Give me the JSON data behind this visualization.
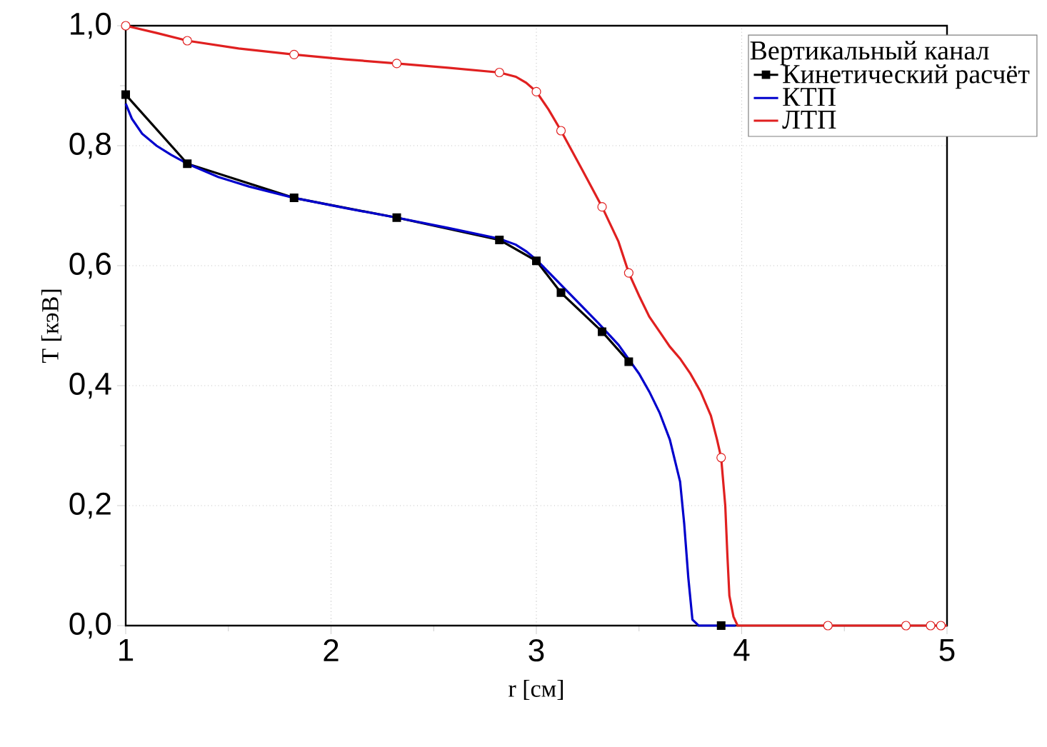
{
  "chart_data": {
    "type": "line",
    "xlabel": "r [см]",
    "ylabel": "T [кэВ]",
    "legend_title": "Вертикальный канал",
    "legend": "top right",
    "grid": true,
    "line_style": "solid",
    "xlim": [
      1,
      5
    ],
    "xticks": [
      1,
      2,
      3,
      4,
      5
    ],
    "ylim": [
      0,
      1.0
    ],
    "yticks": [
      {
        "value": 0,
        "label": "0,0"
      },
      {
        "value": 0.2,
        "label": "0,2"
      },
      {
        "value": 0.4,
        "label": "0,4"
      },
      {
        "value": 0.6,
        "label": "0,6"
      },
      {
        "value": 0.8,
        "label": "0,8"
      },
      {
        "value": 1.0,
        "label": "1,0"
      }
    ],
    "series": [
      {
        "name": "Кинетический расчёт",
        "color": "#000000",
        "marker": "square",
        "x": [
          1.0,
          1.3,
          1.82,
          2.32,
          2.82,
          3.0,
          3.12,
          3.32,
          3.45,
          3.7,
          3.9
        ],
        "values": [
          0.885,
          0.77,
          0.713,
          0.68,
          0.643,
          0.608,
          0.555,
          0.49,
          0.44,
          null,
          0.0
        ]
      },
      {
        "name": "КТП",
        "color": "#0000cc",
        "marker": "none",
        "x": [
          1.0,
          1.03,
          1.08,
          1.15,
          1.22,
          1.3,
          1.45,
          1.6,
          1.82,
          2.07,
          2.32,
          2.57,
          2.82,
          2.9,
          2.95,
          3.0,
          3.1,
          3.2,
          3.3,
          3.4,
          3.5,
          3.55,
          3.6,
          3.65,
          3.7,
          3.72,
          3.74,
          3.76,
          3.79,
          3.97
        ],
        "values": [
          0.87,
          0.845,
          0.82,
          0.8,
          0.785,
          0.77,
          0.748,
          0.732,
          0.713,
          0.696,
          0.68,
          0.663,
          0.645,
          0.635,
          0.624,
          0.61,
          0.575,
          0.54,
          0.505,
          0.468,
          0.42,
          0.39,
          0.355,
          0.31,
          0.24,
          0.17,
          0.08,
          0.01,
          0.0,
          0.0
        ]
      },
      {
        "name": "ЛТП",
        "color": "#e02020",
        "marker": "none",
        "x": [
          1.0,
          1.15,
          1.3,
          1.55,
          1.82,
          2.07,
          2.32,
          2.57,
          2.82,
          2.9,
          2.95,
          3.0,
          3.06,
          3.12,
          3.22,
          3.32,
          3.4,
          3.45,
          3.5,
          3.55,
          3.6,
          3.65,
          3.7,
          3.75,
          3.8,
          3.85,
          3.88,
          3.9,
          3.92,
          3.93,
          3.94,
          3.96,
          3.98,
          4.42,
          5.0
        ],
        "values": [
          1.0,
          0.988,
          0.975,
          0.962,
          0.952,
          0.944,
          0.937,
          0.93,
          0.922,
          0.915,
          0.905,
          0.89,
          0.86,
          0.825,
          0.762,
          0.698,
          0.64,
          0.588,
          0.55,
          0.515,
          0.49,
          0.465,
          0.445,
          0.42,
          0.39,
          0.35,
          0.31,
          0.28,
          0.2,
          0.12,
          0.05,
          0.015,
          0.0,
          0.0,
          0.0
        ]
      },
      {
        "type": "scatter",
        "color": "#e02020",
        "marker": "circle",
        "x": [
          1.0,
          1.3,
          1.82,
          2.32,
          2.82,
          3.0,
          3.12,
          3.32,
          3.45,
          3.9,
          4.42,
          4.8,
          4.92,
          4.97
        ],
        "values": [
          1.0,
          0.975,
          0.952,
          0.937,
          0.922,
          0.89,
          0.825,
          0.698,
          0.588,
          0.28,
          0.0,
          0.0,
          0.0,
          0.0
        ]
      }
    ]
  }
}
